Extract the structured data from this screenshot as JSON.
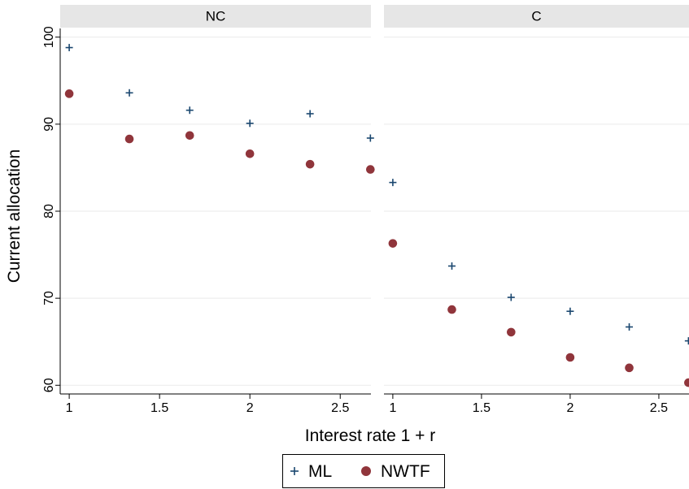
{
  "colors": {
    "ml": "#1a476f",
    "nwtf": "#90353b",
    "strip": "#e6e6e6",
    "grid": "#eaeaea"
  },
  "chart_data": {
    "type": "scatter",
    "xlabel": "Interest rate 1 + r",
    "ylabel": "Current allocation",
    "xlim": [
      0.95,
      2.67
    ],
    "ylim": [
      59,
      101
    ],
    "xticks": [
      "1",
      "1.5",
      "2",
      "2.5"
    ],
    "yticks": [
      "60",
      "70",
      "80",
      "90",
      "100"
    ],
    "grid": true,
    "legend": {
      "position": "bottom",
      "entries": [
        "ML",
        "NWTF"
      ]
    },
    "panels": [
      {
        "label": "NC",
        "series": [
          {
            "name": "ML",
            "marker": "plus",
            "x": [
              1,
              1.333,
              1.667,
              2,
              2.333,
              2.667
            ],
            "y": [
              98.8,
              93.6,
              91.6,
              90.1,
              91.2,
              88.4
            ]
          },
          {
            "name": "NWTF",
            "marker": "circle",
            "x": [
              1,
              1.333,
              1.667,
              2,
              2.333,
              2.667
            ],
            "y": [
              93.5,
              88.3,
              88.7,
              86.6,
              85.4,
              84.8
            ]
          }
        ]
      },
      {
        "label": "C",
        "series": [
          {
            "name": "ML",
            "marker": "plus",
            "x": [
              1,
              1.333,
              1.667,
              2,
              2.333,
              2.667
            ],
            "y": [
              83.3,
              73.7,
              70.1,
              68.5,
              66.7,
              65.1
            ]
          },
          {
            "name": "NWTF",
            "marker": "circle",
            "x": [
              1,
              1.333,
              1.667,
              2,
              2.333,
              2.667
            ],
            "y": [
              76.3,
              68.7,
              66.1,
              63.2,
              62.0,
              60.3
            ]
          }
        ]
      }
    ]
  }
}
